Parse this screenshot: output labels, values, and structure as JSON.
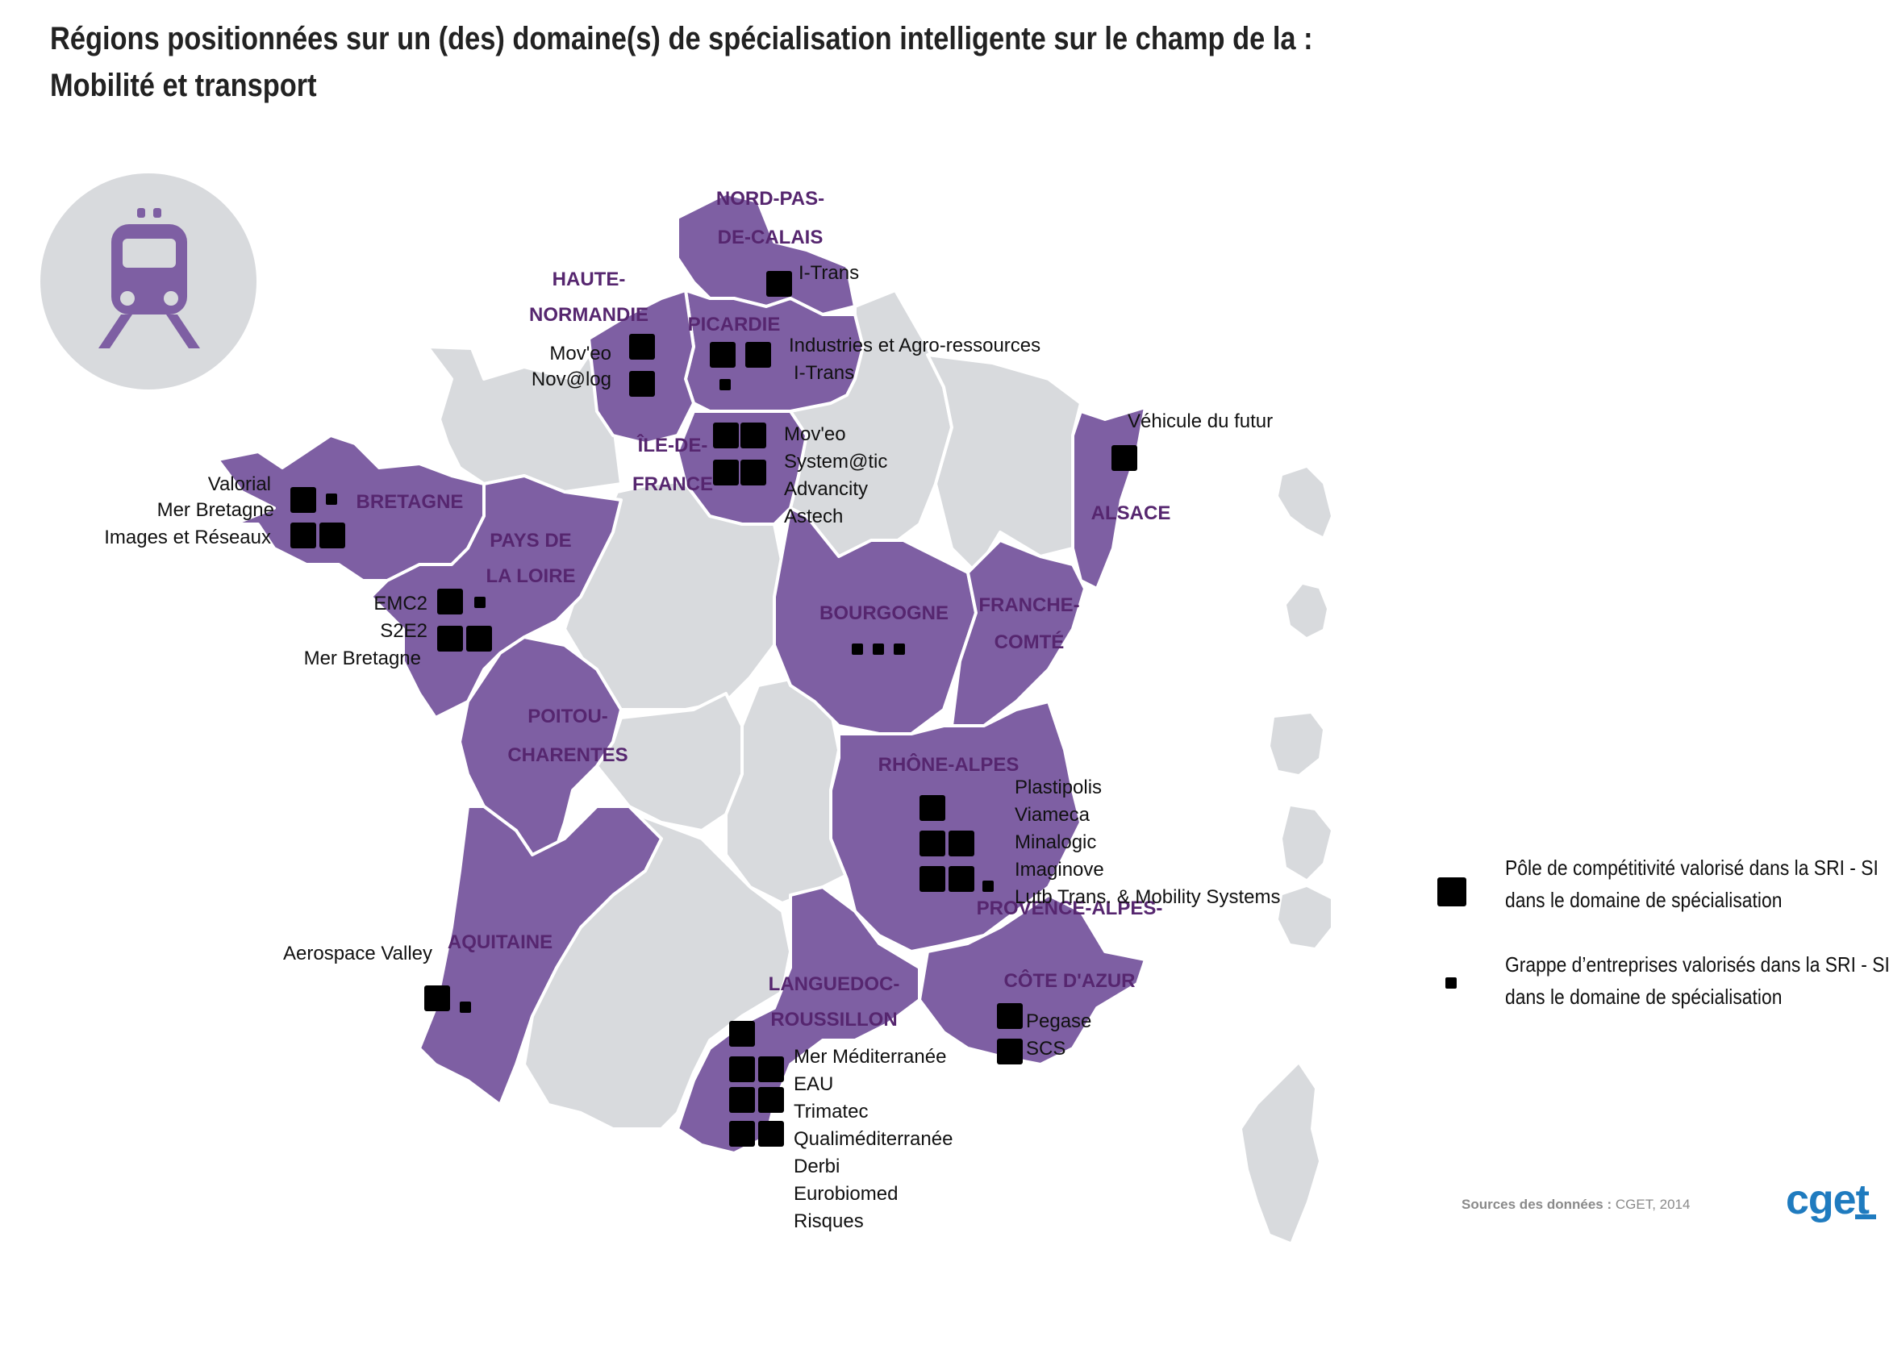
{
  "title": {
    "line1": "Régions positionnées sur un (des) domaine(s) de spécialisation intelligente sur le champ de la :",
    "line2": "Mobilité et transport"
  },
  "theme_icon": "train-icon",
  "colors": {
    "positioned_region": "#7e5fa3",
    "other_region": "#d8dadd",
    "region_label": "#56266f",
    "icon_circle": "#d8dadd",
    "icon_train": "#7e5fa3",
    "logo": "#1f7bbf"
  },
  "regions": {
    "nord_pas_de_calais": [
      "NORD-PAS-",
      "DE-CALAIS"
    ],
    "haute_normandie": [
      "HAUTE-",
      "NORMANDIE"
    ],
    "picardie": [
      "PICARDIE"
    ],
    "ile_de_france": [
      "ÎLE-DE-",
      "FRANCE"
    ],
    "alsace": [
      "ALSACE"
    ],
    "bretagne": [
      "BRETAGNE"
    ],
    "pays_de_la_loire": [
      "PAYS DE",
      "LA LOIRE"
    ],
    "bourgogne": [
      "BOURGOGNE"
    ],
    "franche_comte": [
      "FRANCHE-",
      "COMTÉ"
    ],
    "poitou_charentes": [
      "POITOU-",
      "CHARENTES"
    ],
    "rhone_alpes": [
      "RHÔNE-ALPES"
    ],
    "aquitaine": [
      "AQUITAINE"
    ],
    "paca": [
      "PROVENCE-ALPES-",
      "CÔTE D'AZUR"
    ],
    "languedoc": [
      "LANGUEDOC-",
      "ROUSSILLON"
    ]
  },
  "clusters": {
    "nord_pas_de_calais": [
      "I-Trans"
    ],
    "haute_normandie": [
      "Mov'eo",
      "Nov@log"
    ],
    "picardie": [
      "Industries et Agro-ressources",
      "I-Trans"
    ],
    "ile_de_france": [
      "Mov'eo",
      "System@tic",
      "Advancity",
      "Astech"
    ],
    "alsace": [
      "Véhicule du futur"
    ],
    "bretagne": [
      "Valorial",
      "Mer Bretagne",
      "Images et Réseaux"
    ],
    "pays_de_la_loire": [
      "EMC2",
      "S2E2",
      "Mer Bretagne"
    ],
    "rhone_alpes": [
      "Plastipolis",
      "Viameca",
      "Minalogic",
      "Imaginove",
      "Lutb Trans. & Mobility Systems"
    ],
    "aquitaine": [
      "Aerospace Valley"
    ],
    "paca": [
      "Pegase",
      "SCS"
    ],
    "languedoc": [
      "Mer Méditerranée",
      "EAU",
      "Trimatec",
      "Qualiméditerranée",
      "Derbi",
      "Eurobiomed",
      "Risques"
    ]
  },
  "legend": {
    "pole": [
      "Pôle de compétitivité valorisé dans la SRI - SI",
      "dans le domaine de spécialisation"
    ],
    "grappe": [
      "Grappe d’entreprises valorisés dans la SRI - SI",
      "dans le domaine de spécialisation"
    ]
  },
  "sources": {
    "label": "Sources des données :",
    "value": "CGET, 2014"
  },
  "logo": "cget"
}
